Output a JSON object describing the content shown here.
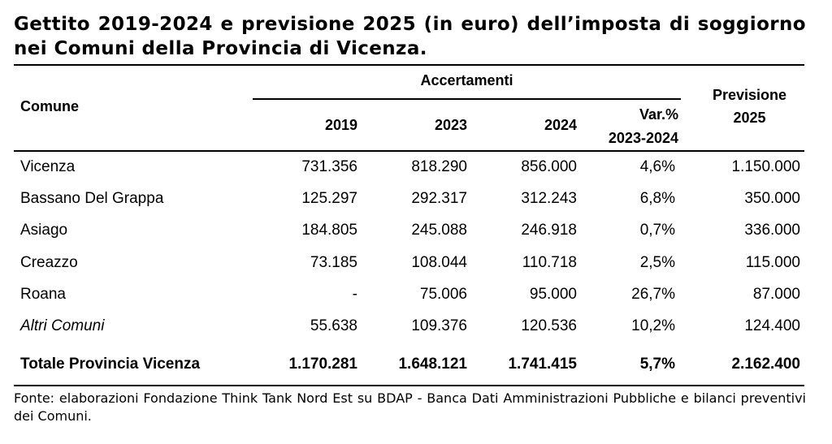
{
  "title": "Gettito 2019-2024 e previsione 2025 (in euro) dell’imposta di soggiorno nei Comuni della Provincia di Vicenza.",
  "table": {
    "header": {
      "comune": "Comune",
      "accertamenti": "Accertamenti",
      "y2019": "2019",
      "y2023": "2023",
      "y2024": "2024",
      "var_line1": "Var.%",
      "var_line2": "2023-2024",
      "prev_line1": "Previsione",
      "prev_line2": "2025"
    },
    "rows": [
      {
        "comune": "Vicenza",
        "y2019": "731.356",
        "y2023": "818.290",
        "y2024": "856.000",
        "var": "4,6%",
        "prev": "1.150.000"
      },
      {
        "comune": "Bassano Del Grappa",
        "y2019": "125.297",
        "y2023": "292.317",
        "y2024": "312.243",
        "var": "6,8%",
        "prev": "350.000"
      },
      {
        "comune": "Asiago",
        "y2019": "184.805",
        "y2023": "245.088",
        "y2024": "246.918",
        "var": "0,7%",
        "prev": "336.000"
      },
      {
        "comune": "Creazzo",
        "y2019": "73.185",
        "y2023": "108.044",
        "y2024": "110.718",
        "var": "2,5%",
        "prev": "115.000"
      },
      {
        "comune": "Roana",
        "y2019": "-",
        "y2023": "75.006",
        "y2024": "95.000",
        "var": "26,7%",
        "prev": "87.000"
      },
      {
        "comune": "Altri Comuni",
        "y2019": "55.638",
        "y2023": "109.376",
        "y2024": "120.536",
        "var": "10,2%",
        "prev": "124.400"
      }
    ],
    "total": {
      "comune": "Totale Provincia Vicenza",
      "y2019": "1.170.281",
      "y2023": "1.648.121",
      "y2024": "1.741.415",
      "var": "5,7%",
      "prev": "2.162.400"
    }
  },
  "source": "Fonte: elaborazioni Fondazione Think Tank Nord Est su BDAP - Banca Dati Amministrazioni Pubbliche e bilanci preventivi dei Comuni."
}
